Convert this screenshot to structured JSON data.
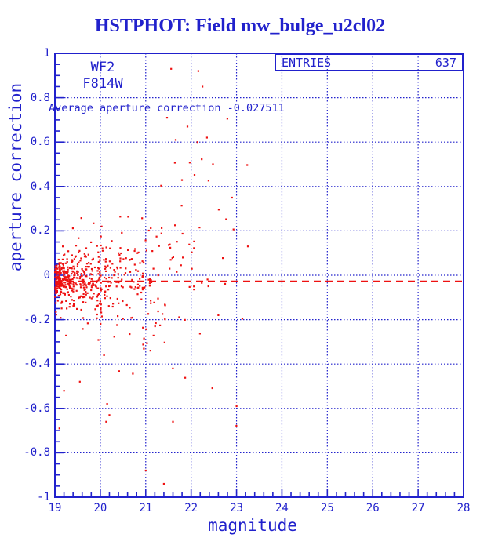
{
  "colors": {
    "blue": "#2121cc",
    "red": "#ee1111",
    "black": "#000000",
    "bg": "#ffffff"
  },
  "title": {
    "text": "HSTPHOT: Field mw_bulge_u2cl02"
  },
  "stats_box": {
    "label": "ENTRIES",
    "value": "637"
  },
  "annotations": {
    "camera": "WF2",
    "filter": "F814W",
    "average_line": "Average aperture correction -0.027511"
  },
  "chart_data": {
    "type": "scatter",
    "title": "HSTPHOT: Field mw_bulge_u2cl02",
    "xlabel": "magnitude",
    "ylabel": "aperture correction",
    "xlim": [
      19,
      28
    ],
    "ylim": [
      -1,
      1
    ],
    "x_tick_labels": [
      "19",
      "20",
      "21",
      "22",
      "23",
      "24",
      "25",
      "26",
      "27",
      "28"
    ],
    "y_tick_labels": [
      "1",
      "0.8",
      "0.6",
      "0.4",
      "0.2",
      "0",
      "-0.2",
      "-0.4",
      "-0.6",
      "-0.8",
      "-1"
    ],
    "x_major_step": 1,
    "x_minor_step": 0.2,
    "y_major_step": 0.2,
    "y_minor_step": 0.05,
    "grid": true,
    "entries": 637,
    "average_aperture_correction": -0.027511,
    "avg_line": {
      "y": -0.027511,
      "style": "dashed",
      "color": "#ee1111"
    },
    "point_color": "#ee1111",
    "grid_color": "#2121cc",
    "seed": 987654321,
    "cluster_bins": [
      {
        "x0": 19.0,
        "x1": 19.15,
        "n": 130,
        "mean": -0.02,
        "sigma": 0.04
      },
      {
        "x0": 19.15,
        "x1": 19.45,
        "n": 120,
        "mean": -0.02,
        "sigma": 0.055
      },
      {
        "x0": 19.45,
        "x1": 19.85,
        "n": 105,
        "mean": -0.015,
        "sigma": 0.07
      },
      {
        "x0": 19.85,
        "x1": 20.35,
        "n": 95,
        "mean": -0.02,
        "sigma": 0.095
      },
      {
        "x0": 20.35,
        "x1": 20.95,
        "n": 75,
        "mean": -0.01,
        "sigma": 0.13
      },
      {
        "x0": 20.95,
        "x1": 21.6,
        "n": 50,
        "mean": -0.02,
        "sigma": 0.18
      },
      {
        "x0": 21.6,
        "x1": 22.4,
        "n": 30,
        "mean": 0.02,
        "sigma": 0.27
      },
      {
        "x0": 22.4,
        "x1": 23.35,
        "n": 10,
        "mean": 0.0,
        "sigma": 0.3
      }
    ],
    "outlier_points": [
      [
        21.56,
        0.93
      ],
      [
        22.16,
        0.92
      ],
      [
        22.25,
        0.85
      ],
      [
        21.47,
        0.71
      ],
      [
        21.92,
        0.67
      ],
      [
        21.66,
        0.61
      ],
      [
        22.14,
        0.6
      ],
      [
        22.35,
        0.62
      ],
      [
        22.48,
        0.5
      ],
      [
        22.9,
        0.35
      ],
      [
        23.25,
        0.13
      ],
      [
        22.6,
        -0.18
      ],
      [
        20.15,
        -0.58
      ],
      [
        20.2,
        -0.63
      ],
      [
        20.13,
        -0.66
      ],
      [
        21.6,
        -0.66
      ],
      [
        23.0,
        -0.59
      ],
      [
        21.0,
        -0.88
      ],
      [
        21.4,
        -0.94
      ],
      [
        19.2,
        -0.52
      ],
      [
        19.55,
        -0.48
      ],
      [
        19.1,
        -0.69
      ]
    ]
  }
}
